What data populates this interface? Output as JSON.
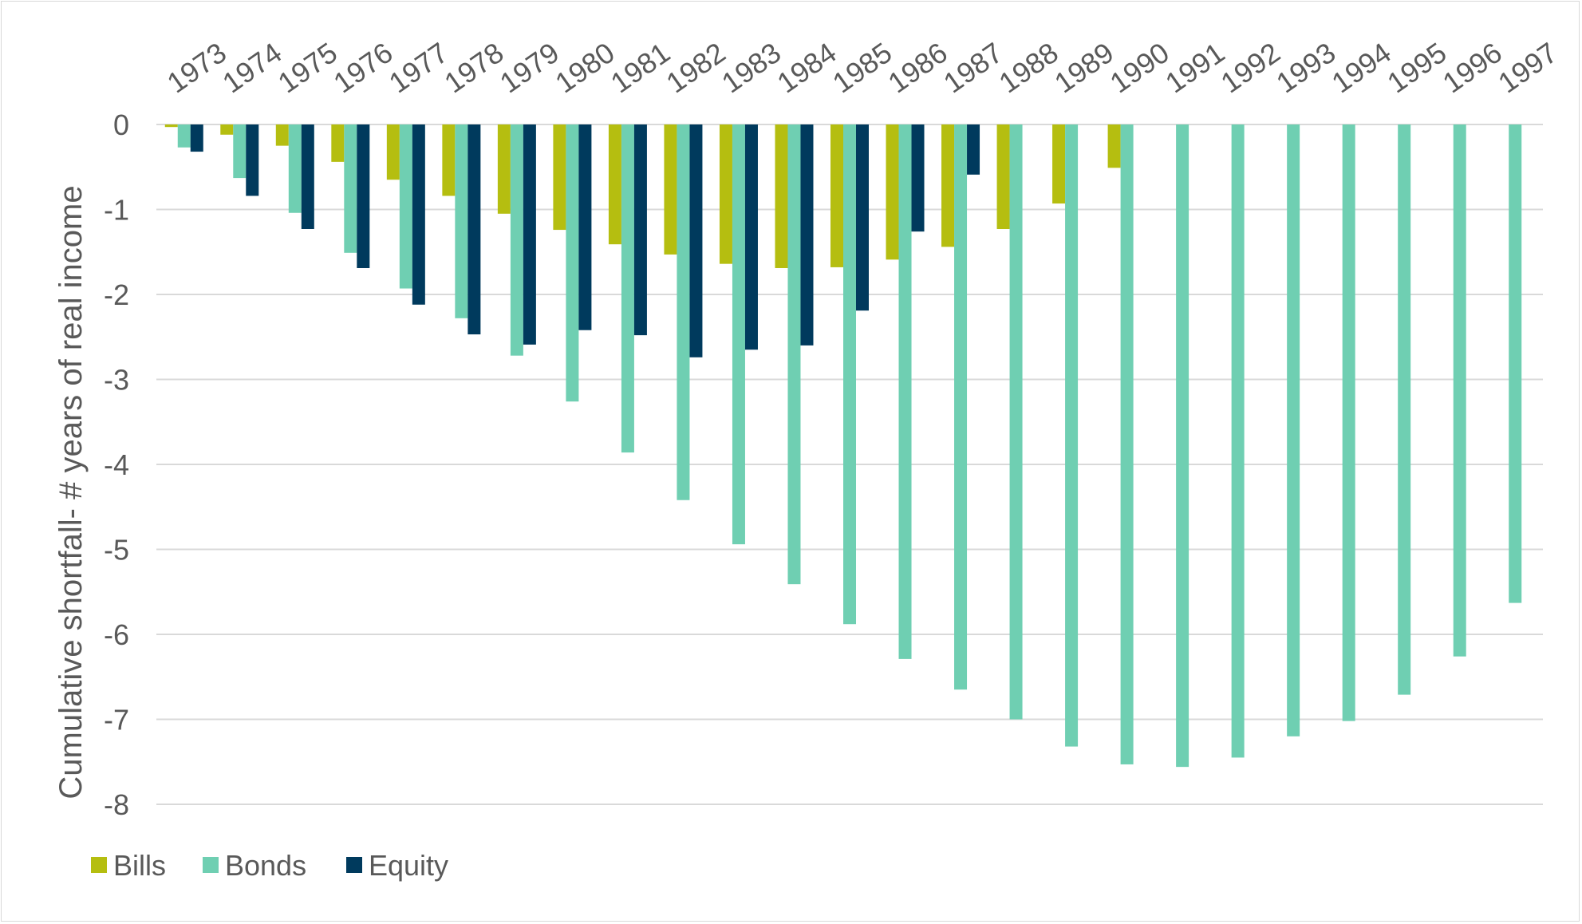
{
  "chart_data": {
    "type": "bar",
    "title": "",
    "xlabel": "",
    "ylabel": "Cumulative shortfall- # years of real income",
    "ylim": [
      -8,
      0
    ],
    "yticks": [
      "0",
      "-1",
      "-2",
      "-3",
      "-4",
      "-5",
      "-6",
      "-7",
      "-8"
    ],
    "ytick_values": [
      0,
      -1,
      -2,
      -3,
      -4,
      -5,
      -6,
      -7,
      -8
    ],
    "grid": true,
    "x_axis_position": "top",
    "x_tick_rotation": "diagonal",
    "legend_position": "bottom-left",
    "categories": [
      "1973",
      "1974",
      "1975",
      "1976",
      "1977",
      "1978",
      "1979",
      "1980",
      "1981",
      "1982",
      "1983",
      "1984",
      "1985",
      "1986",
      "1987",
      "1988",
      "1989",
      "1990",
      "1991",
      "1992",
      "1993",
      "1994",
      "1995",
      "1996",
      "1997"
    ],
    "series": [
      {
        "name": "Bills",
        "color": "#b5be10",
        "values": [
          -0.03,
          -0.12,
          -0.25,
          -0.44,
          -0.65,
          -0.84,
          -1.05,
          -1.24,
          -1.41,
          -1.53,
          -1.64,
          -1.69,
          -1.68,
          -1.59,
          -1.44,
          -1.23,
          -0.93,
          -0.51,
          null,
          null,
          null,
          null,
          null,
          null,
          null
        ]
      },
      {
        "name": "Bonds",
        "color": "#6fcfb2",
        "values": [
          -0.27,
          -0.63,
          -1.04,
          -1.51,
          -1.93,
          -2.28,
          -2.72,
          -3.26,
          -3.86,
          -4.42,
          -4.94,
          -5.41,
          -5.88,
          -6.29,
          -6.65,
          -7.0,
          -7.32,
          -7.53,
          -7.56,
          -7.45,
          -7.2,
          -7.02,
          -6.71,
          -6.26,
          -5.63
        ]
      },
      {
        "name": "Equity",
        "color": "#003a5d",
        "values": [
          -0.32,
          -0.84,
          -1.23,
          -1.69,
          -2.12,
          -2.47,
          -2.59,
          -2.42,
          -2.48,
          -2.74,
          -2.65,
          -2.6,
          -2.19,
          -1.26,
          -0.59,
          null,
          null,
          null,
          null,
          null,
          null,
          null,
          null,
          null,
          null
        ]
      }
    ]
  },
  "colors": {
    "gridline": "#d9d9d9",
    "text": "#595959",
    "frame": "#d9d9d9"
  }
}
